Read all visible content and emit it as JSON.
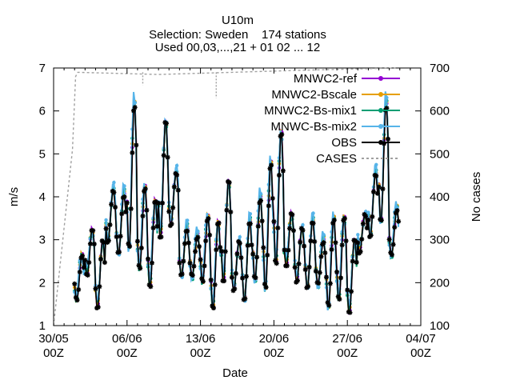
{
  "chart_data": {
    "type": "line",
    "title_lines": [
      "U10m",
      "Selection: Sweden    174 stations",
      "Used 00,03,...,21 + 01 02 ... 12"
    ],
    "xlabel": "Date",
    "ylabel": "m/s",
    "y2label": "No cases",
    "x_ticks": [
      {
        "date": "30/05",
        "hour": "00Z"
      },
      {
        "date": "06/06",
        "hour": "00Z"
      },
      {
        "date": "13/06",
        "hour": "00Z"
      },
      {
        "date": "20/06",
        "hour": "00Z"
      },
      {
        "date": "27/06",
        "hour": "00Z"
      },
      {
        "date": "04/07",
        "hour": "00Z"
      }
    ],
    "y_ticks": [
      "1",
      "2",
      "3",
      "4",
      "5",
      "6",
      "7"
    ],
    "y2_ticks": [
      "100",
      "200",
      "300",
      "400",
      "500",
      "600",
      "700"
    ],
    "xlim_days": [
      0,
      35
    ],
    "ylim": [
      1,
      7
    ],
    "y2lim": [
      100,
      700
    ],
    "legend_position": "top-right",
    "series": [
      {
        "name": "MNWC2-ref",
        "color": "#9400d3",
        "style": "line-points"
      },
      {
        "name": "MNWC2-Bscale",
        "color": "#e69f00",
        "style": "line-points"
      },
      {
        "name": "MNWC2-Bs-mix1",
        "color": "#009e73",
        "style": "line-points"
      },
      {
        "name": "MNWC-Bs-mix2",
        "color": "#56b4e9",
        "style": "line-points"
      },
      {
        "name": "OBS",
        "color": "#000000",
        "style": "line-points"
      },
      {
        "name": "CASES",
        "color": "#a0a0a0",
        "style": "dashed",
        "axis": "y2"
      }
    ],
    "obs_daily_envelope": [
      {
        "day": 2,
        "min": 1.6,
        "max": 2.6
      },
      {
        "day": 3,
        "min": 2.2,
        "max": 3.2
      },
      {
        "day": 4,
        "min": 1.4,
        "max": 3.0
      },
      {
        "day": 5,
        "min": 2.9,
        "max": 4.2
      },
      {
        "day": 6,
        "min": 2.6,
        "max": 4.1
      },
      {
        "day": 7,
        "min": 2.7,
        "max": 6.2
      },
      {
        "day": 8,
        "min": 2.3,
        "max": 4.2
      },
      {
        "day": 9,
        "min": 1.9,
        "max": 3.9
      },
      {
        "day": 10,
        "min": 3.0,
        "max": 5.8
      },
      {
        "day": 11,
        "min": 3.3,
        "max": 4.6
      },
      {
        "day": 12,
        "min": 2.1,
        "max": 3.3
      },
      {
        "day": 13,
        "min": 2.1,
        "max": 3.1
      },
      {
        "day": 14,
        "min": 2.0,
        "max": 3.5
      },
      {
        "day": 15,
        "min": 1.4,
        "max": 3.4
      },
      {
        "day": 16,
        "min": 2.0,
        "max": 4.4
      },
      {
        "day": 17,
        "min": 1.8,
        "max": 3.0
      },
      {
        "day": 18,
        "min": 1.5,
        "max": 3.5
      },
      {
        "day": 19,
        "min": 2.0,
        "max": 4.0
      },
      {
        "day": 20,
        "min": 1.8,
        "max": 4.8
      },
      {
        "day": 21,
        "min": 2.4,
        "max": 5.5
      },
      {
        "day": 22,
        "min": 2.4,
        "max": 3.6
      },
      {
        "day": 23,
        "min": 2.0,
        "max": 3.3
      },
      {
        "day": 24,
        "min": 1.8,
        "max": 3.5
      },
      {
        "day": 25,
        "min": 1.9,
        "max": 3.0
      },
      {
        "day": 26,
        "min": 1.4,
        "max": 3.5
      },
      {
        "day": 27,
        "min": 1.6,
        "max": 3.5
      },
      {
        "day": 28,
        "min": 1.3,
        "max": 3.0
      },
      {
        "day": 29,
        "min": 2.7,
        "max": 3.6
      },
      {
        "day": 30,
        "min": 3.0,
        "max": 4.6
      },
      {
        "day": 31,
        "min": 3.3,
        "max": 6.2
      },
      {
        "day": 32,
        "min": 2.6,
        "max": 3.7
      }
    ],
    "cases_profile": [
      {
        "day": 0.0,
        "value": 0
      },
      {
        "day": 1.8,
        "value": 510
      },
      {
        "day": 2.1,
        "value": 680
      },
      {
        "day": 2.3,
        "value": 690
      },
      {
        "day": 10.0,
        "value": 685
      },
      {
        "day": 17.0,
        "value": 690
      },
      {
        "day": 24.0,
        "value": 695
      },
      {
        "day": 32.6,
        "value": 700
      }
    ],
    "cases_dips": [
      {
        "day": 8.5,
        "value": 660
      },
      {
        "day": 15.5,
        "value": 630
      }
    ]
  }
}
